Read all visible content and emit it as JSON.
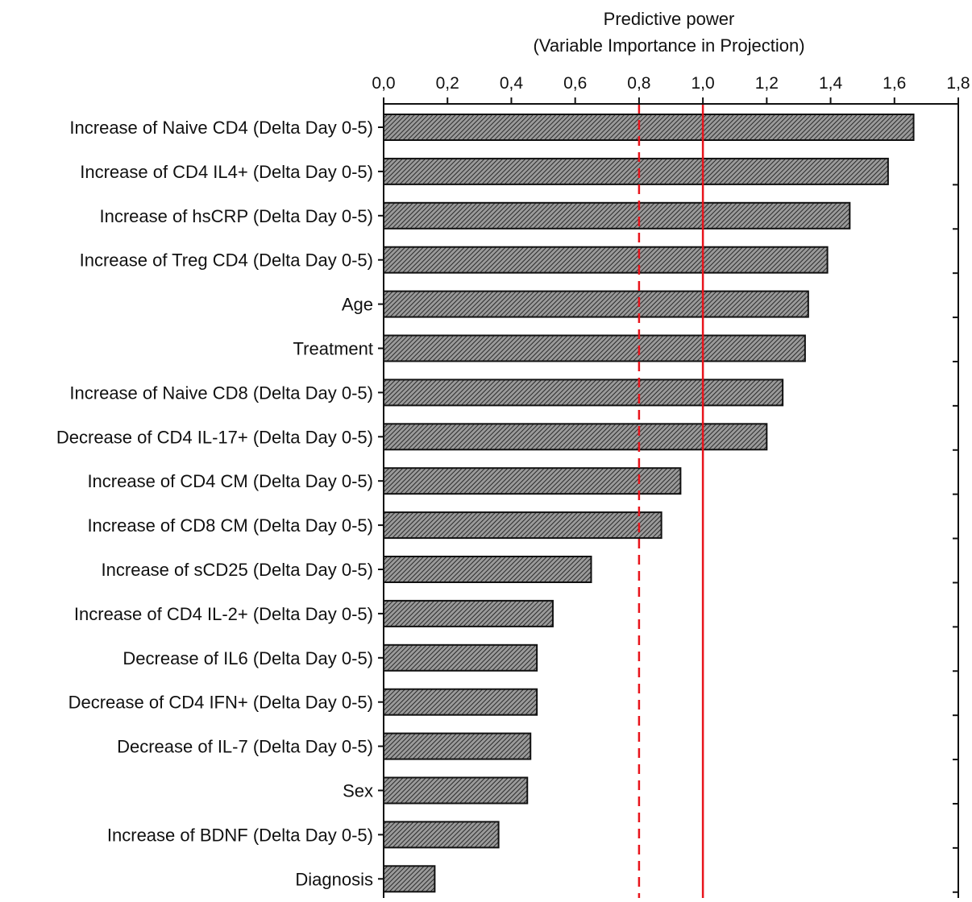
{
  "chart_data": {
    "type": "bar",
    "orientation": "horizontal",
    "xlabel_line1": "Predictive power",
    "xlabel_line2": "(Variable Importance in Projection)",
    "xlim": [
      0,
      1.8
    ],
    "x_axis_position": "top",
    "xticks": [
      "0,0",
      "0,2",
      "0,4",
      "0,6",
      "0,8",
      "1,0",
      "1,2",
      "1,4",
      "1,6",
      "1,8"
    ],
    "tick_values": [
      0,
      0.2,
      0.4,
      0.6,
      0.8,
      1.0,
      1.2,
      1.4,
      1.6,
      1.8
    ],
    "categories": [
      "Increase of Naive CD4 (Delta Day 0-5)",
      "Increase of  CD4 IL4+ (Delta Day 0-5)",
      "Increase of  hsCRP (Delta Day 0-5)",
      "Increase of  Treg CD4 (Delta Day 0-5)",
      "Age",
      "Treatment",
      "Increase of  Naive CD8 (Delta Day 0-5)",
      "Decrease of CD4 IL-17+ (Delta Day 0-5)",
      "Increase of  CD4 CM (Delta Day 0-5)",
      "Increase of  CD8 CM (Delta Day 0-5)",
      "Increase of sCD25 (Delta Day 0-5)",
      "Increase of CD4 IL-2+ (Delta Day 0-5)",
      "Decrease of IL6 (Delta Day 0-5)",
      "Decrease of CD4 IFN+ (Delta Day 0-5)",
      "Decrease of IL-7 (Delta Day 0-5)",
      "Sex",
      "Increase of BDNF (Delta Day 0-5)",
      "Diagnosis"
    ],
    "values": [
      1.66,
      1.58,
      1.46,
      1.39,
      1.33,
      1.32,
      1.25,
      1.2,
      0.93,
      0.87,
      0.65,
      0.53,
      0.48,
      0.48,
      0.46,
      0.45,
      0.36,
      0.16
    ],
    "reference_lines": [
      {
        "value": 0.8,
        "style": "dashed",
        "color": "#e8141c"
      },
      {
        "value": 1.0,
        "style": "solid",
        "color": "#e8141c"
      }
    ],
    "bar_fill": "#777777",
    "bar_stroke": "#111111",
    "grid": false,
    "legend": "none"
  }
}
